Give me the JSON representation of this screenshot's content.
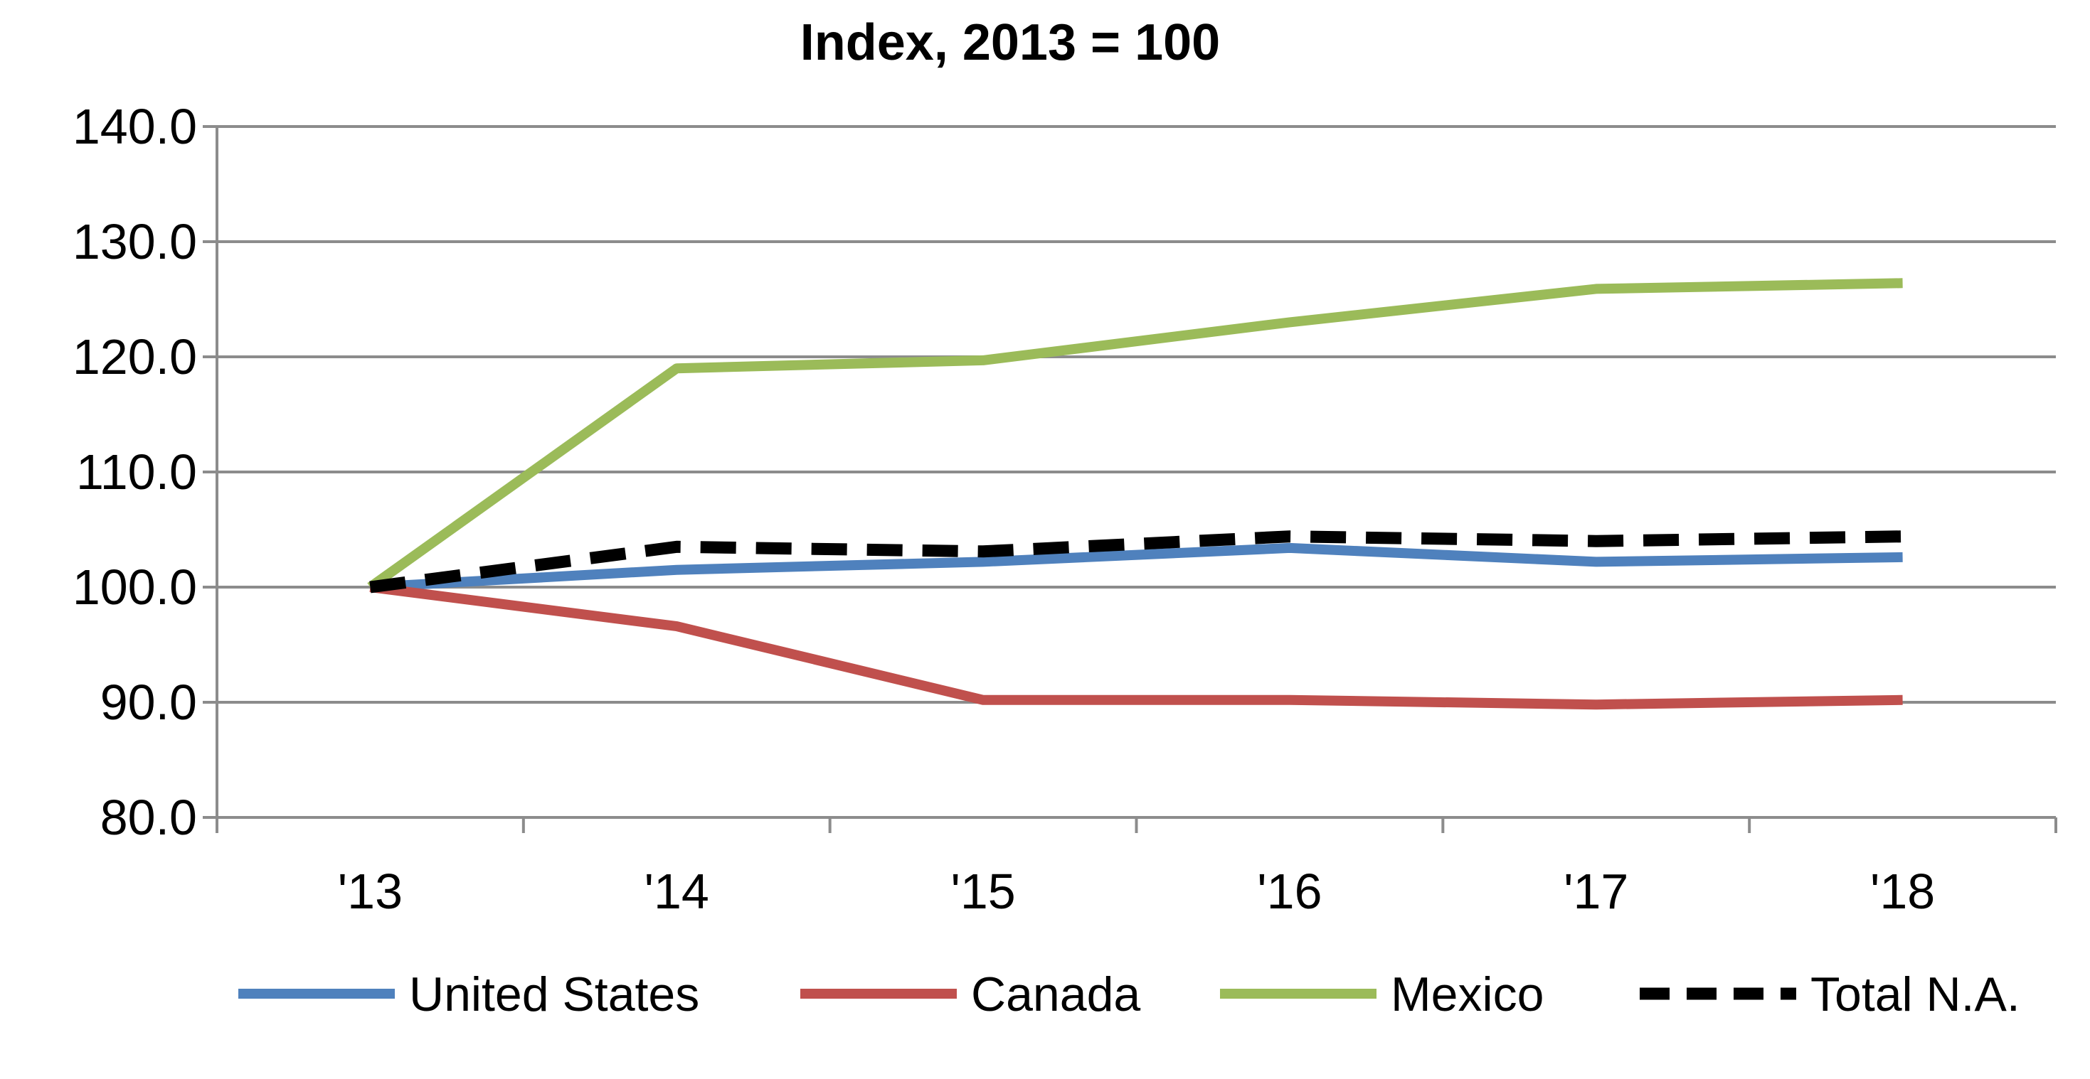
{
  "chart_data": {
    "type": "line",
    "title": "Index, 2013 = 100",
    "xlabel": "",
    "ylabel": "",
    "categories": [
      "'13",
      "'14",
      "'15",
      "'16",
      "'17",
      "'18"
    ],
    "ylim": [
      80,
      140
    ],
    "yticks": [
      "80.0",
      "90.0",
      "100.0",
      "110.0",
      "120.0",
      "130.0",
      "140.0"
    ],
    "grid": "horizontal",
    "legend_position": "bottom",
    "series": [
      {
        "name": "United States",
        "color": "#4f81bd",
        "style": "solid",
        "values": [
          100.0,
          101.5,
          102.2,
          103.4,
          102.2,
          102.6
        ]
      },
      {
        "name": "Canada",
        "color": "#c0504d",
        "style": "solid",
        "values": [
          100.0,
          96.6,
          90.2,
          90.2,
          89.8,
          90.2
        ]
      },
      {
        "name": "Mexico",
        "color": "#9bbb59",
        "style": "solid",
        "values": [
          100.0,
          119.0,
          119.7,
          123.0,
          125.9,
          126.4
        ]
      },
      {
        "name": "Total N.A.",
        "color": "#000000",
        "style": "dashed",
        "values": [
          100.0,
          103.5,
          103.1,
          104.4,
          104.0,
          104.4
        ]
      }
    ]
  }
}
